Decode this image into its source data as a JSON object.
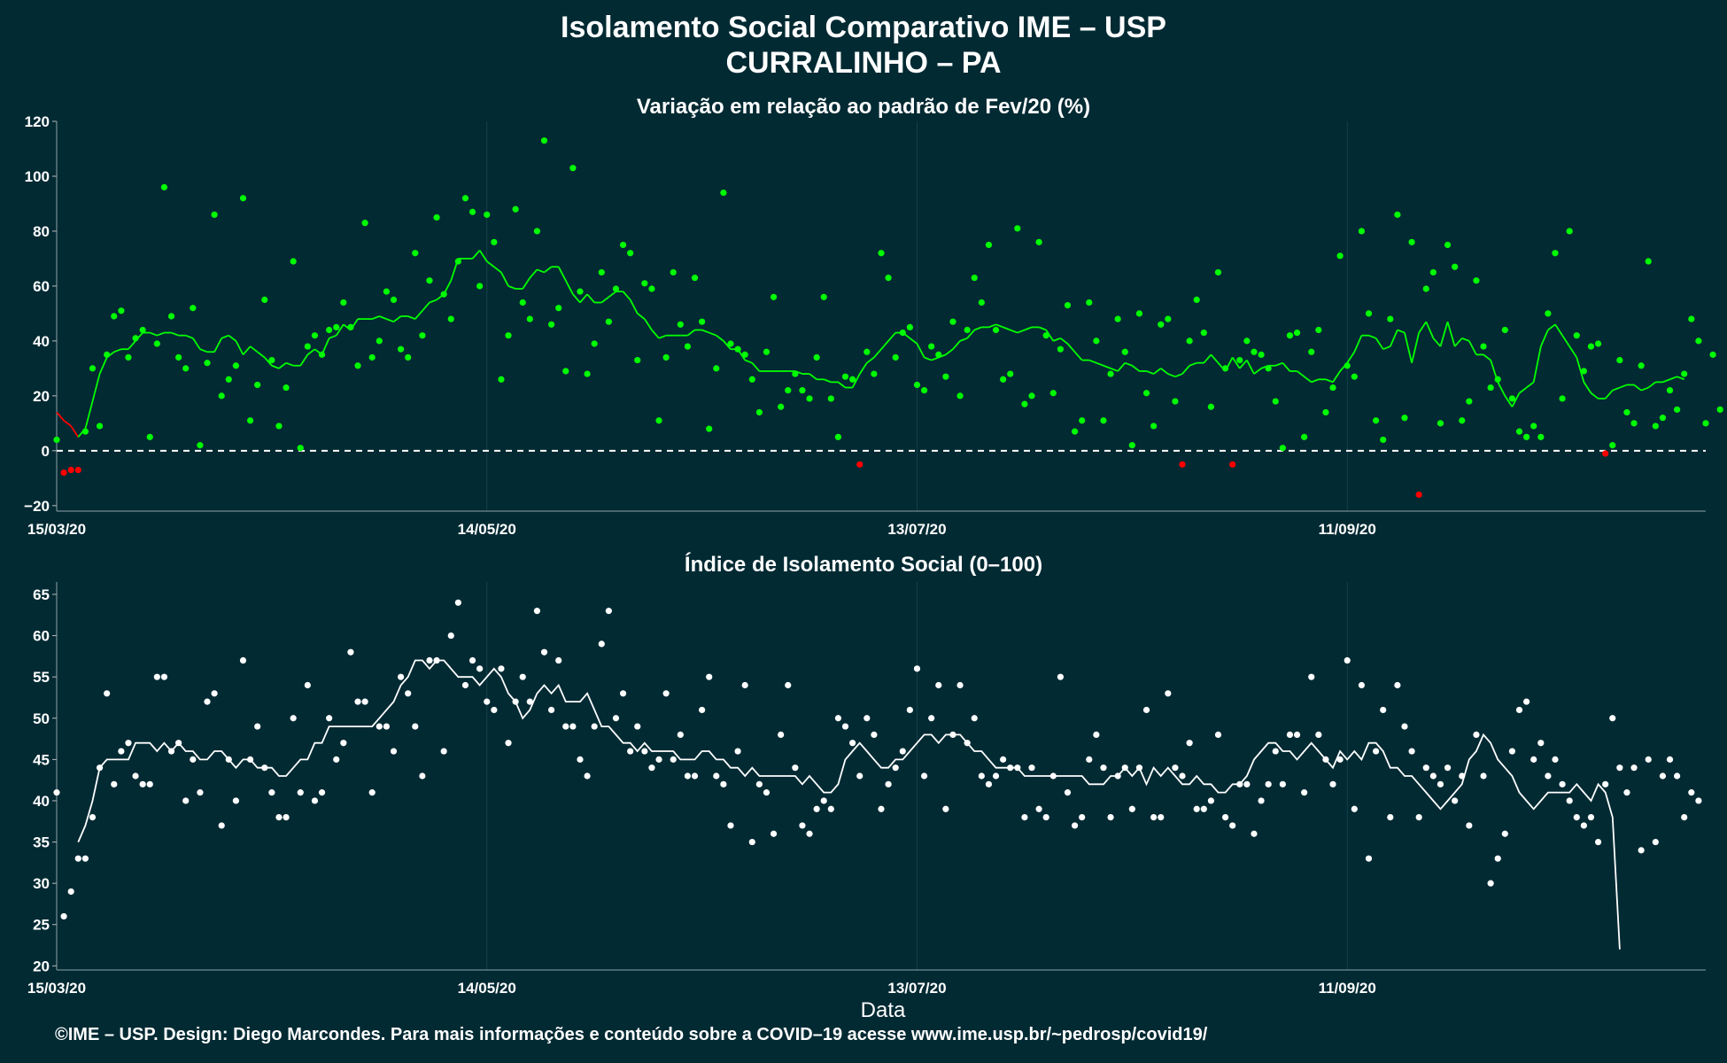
{
  "title": "Isolamento Social Comparativo IME – USP",
  "subtitle": "CURRALINHO – PA",
  "footer": "©IME – USP. Design: Diego Marcondes. Para mais informações e conteúdo sobre a COVID–19 acesse www.ime.usp.br/~pedrosp/covid19/",
  "colors": {
    "background": "#022a33",
    "positive": "#00ff00",
    "negative": "#ff0000",
    "index": "#ffffff",
    "zero_line": "#ffffff",
    "grid": "#14414a"
  },
  "chart_data": [
    {
      "type": "scatter",
      "title": "Variação em relação ao padrão de Fev/20 (%)",
      "xlabel": "",
      "ylabel": "",
      "x_start": "15/03/20",
      "x_end": "31/10/20",
      "x_ticks": [
        "15/03/20",
        "14/05/20",
        "13/07/20",
        "11/09/20"
      ],
      "ylim": [
        -22,
        120
      ],
      "y_ticks": [
        -20,
        0,
        20,
        40,
        60,
        80,
        100,
        120
      ],
      "reference_line": 0,
      "grid": true,
      "series": [
        {
          "role": "points",
          "values": [
            4,
            -8,
            -7,
            -7,
            7,
            30,
            9,
            35,
            49,
            51,
            34,
            41,
            44,
            5,
            39,
            96,
            49,
            34,
            30,
            52,
            2,
            32,
            86,
            20,
            26,
            31,
            92,
            11,
            24,
            55,
            33,
            9,
            23,
            69,
            1,
            38,
            42,
            35,
            44,
            45,
            54,
            45,
            31,
            83,
            34,
            40,
            58,
            55,
            37,
            34,
            72,
            42,
            62,
            85,
            57,
            48,
            69,
            92,
            87,
            60,
            86,
            76,
            26,
            42,
            88,
            54,
            48,
            80,
            113,
            46,
            52,
            29,
            103,
            58,
            28,
            39,
            65,
            47,
            59,
            75,
            72,
            33,
            61,
            59,
            11,
            34,
            65,
            46,
            38,
            63,
            47,
            8,
            30,
            94,
            39,
            37,
            35,
            26,
            14,
            36,
            56,
            16,
            22,
            28,
            22,
            19,
            34,
            56,
            19,
            5,
            27,
            26,
            -5,
            36,
            28,
            72,
            63,
            34,
            43,
            45,
            24,
            22,
            38,
            35,
            27,
            47,
            20,
            44,
            63,
            54,
            75,
            44,
            26,
            28,
            81,
            17,
            20,
            76,
            42,
            21,
            37,
            53,
            7,
            11,
            54,
            40,
            11,
            28,
            48,
            36,
            2,
            50,
            21,
            9,
            46,
            48,
            18,
            -5,
            40,
            55,
            43,
            16,
            65,
            30,
            -5,
            33,
            40,
            36,
            35,
            30,
            18,
            1,
            42,
            43,
            5,
            36,
            44,
            14,
            23,
            71,
            31,
            27,
            80,
            50,
            11,
            4,
            48,
            86,
            12,
            76,
            -16,
            59,
            65,
            10,
            75,
            67,
            11,
            18,
            62,
            38,
            23,
            26,
            44,
            19,
            7,
            5,
            9,
            5,
            50,
            72,
            19,
            80,
            42,
            29,
            38,
            39,
            -1,
            2,
            33,
            14,
            10,
            31,
            69,
            9,
            12,
            22,
            15,
            28,
            48,
            40,
            10,
            35,
            15
          ]
        },
        {
          "role": "moving_average",
          "values": [
            14,
            11,
            9,
            5,
            8,
            18,
            28,
            34,
            36,
            37,
            37,
            40,
            43,
            43,
            42,
            43,
            43,
            42,
            42,
            41,
            37,
            36,
            36,
            41,
            42,
            40,
            35,
            38,
            36,
            34,
            31,
            30,
            32,
            31,
            31,
            35,
            37,
            35,
            41,
            42,
            46,
            44,
            48,
            48,
            48,
            49,
            48,
            47,
            49,
            49,
            48,
            51,
            54,
            55,
            57,
            62,
            70,
            70,
            70,
            73,
            69,
            67,
            65,
            60,
            59,
            59,
            63,
            66,
            65,
            67,
            67,
            62,
            57,
            54,
            57,
            54,
            54,
            56,
            58,
            58,
            55,
            50,
            48,
            44,
            41,
            42,
            42,
            42,
            42,
            44,
            44,
            43,
            42,
            40,
            37,
            37,
            33,
            32,
            29,
            29,
            29,
            29,
            29,
            29,
            28,
            28,
            26,
            26,
            25,
            25,
            23,
            23,
            28,
            32,
            34,
            37,
            40,
            43,
            43,
            41,
            39,
            34,
            33,
            34,
            35,
            37,
            40,
            41,
            44,
            45,
            45,
            46,
            45,
            44,
            43,
            44,
            45,
            45,
            44,
            40,
            41,
            39,
            36,
            33,
            33,
            32,
            31,
            30,
            29,
            32,
            31,
            29,
            29,
            28,
            30,
            28,
            27,
            28,
            31,
            32,
            32,
            35,
            32,
            29,
            34,
            30,
            33,
            28,
            30,
            31,
            31,
            32,
            29,
            29,
            27,
            25,
            26,
            26,
            25,
            29,
            32,
            36,
            42,
            42,
            41,
            37,
            38,
            44,
            43,
            32,
            43,
            47,
            41,
            38,
            47,
            38,
            41,
            40,
            35,
            35,
            33,
            25,
            20,
            16,
            21,
            23,
            25,
            38,
            44,
            46,
            42,
            38,
            34,
            25,
            21,
            19,
            19,
            22,
            23,
            24,
            24,
            22,
            23,
            25,
            25,
            26,
            27,
            26
          ]
        }
      ]
    },
    {
      "type": "scatter",
      "title": "Índice de Isolamento Social (0–100)",
      "xlabel": "Data",
      "ylabel": "",
      "x_start": "15/03/20",
      "x_end": "31/10/20",
      "x_ticks": [
        "15/03/20",
        "14/05/20",
        "13/07/20",
        "11/09/20"
      ],
      "ylim": [
        19.5,
        66.5
      ],
      "y_ticks": [
        20,
        25,
        30,
        35,
        40,
        45,
        50,
        55,
        60,
        65
      ],
      "grid": true,
      "series": [
        {
          "role": "points",
          "values": [
            41,
            26,
            29,
            33,
            33,
            38,
            44,
            53,
            42,
            46,
            47,
            43,
            42,
            42,
            55,
            55,
            46,
            47,
            40,
            45,
            41,
            52,
            53,
            37,
            45,
            40,
            57,
            45,
            49,
            44,
            41,
            38,
            38,
            50,
            41,
            54,
            40,
            41,
            50,
            45,
            47,
            58,
            52,
            52,
            41,
            49,
            49,
            46,
            55,
            53,
            49,
            43,
            57,
            57,
            46,
            60,
            64,
            54,
            57,
            56,
            52,
            51,
            56,
            47,
            52,
            55,
            52,
            63,
            58,
            51,
            57,
            49,
            49,
            45,
            43,
            49,
            59,
            63,
            50,
            53,
            46,
            49,
            46,
            44,
            45,
            53,
            45,
            48,
            43,
            43,
            51,
            55,
            43,
            42,
            37,
            46,
            54,
            35,
            42,
            41,
            36,
            48,
            54,
            44,
            37,
            36,
            39,
            40,
            39,
            50,
            49,
            47,
            43,
            50,
            48,
            39,
            42,
            44,
            46,
            51,
            56,
            43,
            50,
            54,
            39,
            48,
            54,
            47,
            50,
            43,
            42,
            43,
            45,
            44,
            44,
            38,
            44,
            39,
            38,
            43,
            55,
            41,
            37,
            38,
            45,
            48,
            44,
            38,
            43,
            44,
            39,
            44,
            51,
            38,
            38,
            53,
            44,
            43,
            47,
            39,
            39,
            40,
            48,
            38,
            37,
            42,
            42,
            36,
            40,
            42,
            46,
            42,
            48,
            48,
            41,
            55,
            48,
            45,
            42,
            45,
            57,
            39,
            54,
            33,
            46,
            51,
            38,
            54,
            49,
            46,
            38,
            44,
            43,
            42,
            44,
            40,
            43,
            37,
            48,
            43,
            30,
            33,
            36,
            46,
            51,
            52,
            45,
            47,
            43,
            45,
            42,
            40,
            38,
            37,
            38,
            35,
            42,
            50,
            44,
            41,
            44,
            34,
            45,
            35,
            43,
            45,
            43,
            38,
            41,
            40
          ]
        },
        {
          "role": "moving_average",
          "x_offset_days": 3,
          "values": [
            35,
            37,
            40,
            44,
            45,
            45,
            45,
            45,
            47,
            47,
            47,
            46,
            47,
            46,
            47,
            46,
            46,
            45,
            45,
            46,
            46,
            45,
            44,
            45,
            45,
            44,
            44,
            44,
            43,
            43,
            44,
            45,
            45,
            47,
            47,
            49,
            49,
            49,
            49,
            49,
            49,
            49,
            50,
            51,
            52,
            54,
            55,
            57,
            57,
            56,
            57,
            57,
            56,
            55,
            55,
            55,
            54,
            55,
            56,
            55,
            53,
            52,
            50,
            51,
            53,
            54,
            53,
            54,
            52,
            52,
            52,
            53,
            51,
            49,
            49,
            48,
            47,
            47,
            46,
            47,
            46,
            46,
            46,
            46,
            45,
            45,
            45,
            46,
            46,
            45,
            45,
            44,
            44,
            43,
            44,
            43,
            43,
            43,
            43,
            43,
            43,
            42,
            43,
            42,
            41,
            41,
            42,
            45,
            46,
            47,
            46,
            45,
            44,
            44,
            45,
            45,
            46,
            47,
            48,
            48,
            47,
            48,
            48,
            48,
            47,
            46,
            46,
            45,
            44,
            44,
            44,
            44,
            43,
            43,
            43,
            43,
            43,
            43,
            43,
            43,
            43,
            42,
            42,
            42,
            43,
            43,
            44,
            43,
            44,
            42,
            44,
            43,
            44,
            43,
            42,
            42,
            43,
            42,
            42,
            41,
            41,
            42,
            42,
            43,
            45,
            46,
            47,
            47,
            46,
            46,
            45,
            46,
            47,
            46,
            45,
            44,
            46,
            45,
            46,
            45,
            47,
            47,
            46,
            44,
            44,
            43,
            43,
            42,
            41,
            40,
            39,
            40,
            41,
            42,
            45,
            46,
            48,
            47,
            45,
            44,
            43,
            41,
            40,
            39,
            40,
            41,
            41,
            41,
            41,
            42,
            41,
            40,
            42,
            41,
            38,
            22
          ]
        }
      ]
    }
  ]
}
